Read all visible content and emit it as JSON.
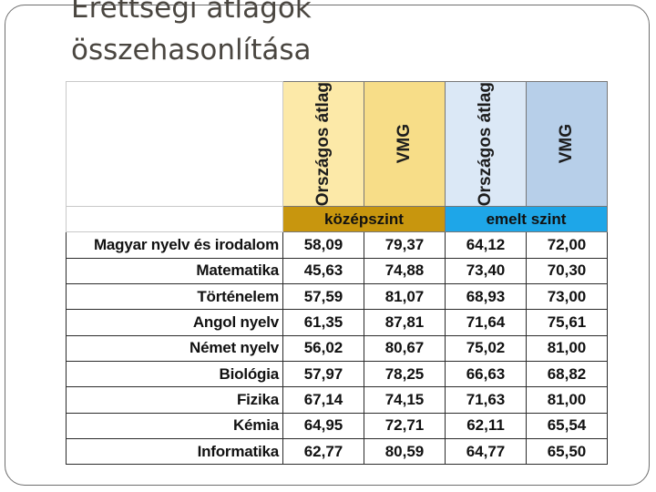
{
  "slide": {
    "title_line1": "Érettségi átlagok",
    "title_line2": "összehasonlítása"
  },
  "table": {
    "column_headers": [
      "Országos átlag",
      "VMG",
      "Országos átlag",
      "VMG"
    ],
    "levels": [
      "középszint",
      "emelt szint"
    ],
    "rows": [
      {
        "subject": "Magyar nyelv és irodalom",
        "values": [
          "58,09",
          "79,37",
          "64,12",
          "72,00"
        ]
      },
      {
        "subject": "Matematika",
        "values": [
          "45,63",
          "74,88",
          "73,40",
          "70,30"
        ]
      },
      {
        "subject": "Történelem",
        "values": [
          "57,59",
          "81,07",
          "68,93",
          "73,00"
        ]
      },
      {
        "subject": "Angol nyelv",
        "values": [
          "61,35",
          "87,81",
          "71,64",
          "75,61"
        ]
      },
      {
        "subject": "Német nyelv",
        "values": [
          "56,02",
          "80,67",
          "75,02",
          "81,00"
        ]
      },
      {
        "subject": "Biológia",
        "values": [
          "57,97",
          "78,25",
          "66,63",
          "68,82"
        ]
      },
      {
        "subject": "Fizika",
        "values": [
          "67,14",
          "74,15",
          "71,63",
          "81,00"
        ]
      },
      {
        "subject": "Kémia",
        "values": [
          "64,95",
          "72,71",
          "62,11",
          "65,54"
        ]
      },
      {
        "subject": "Informatika",
        "values": [
          "62,77",
          "80,59",
          "64,77",
          "65,50"
        ]
      }
    ],
    "colors": {
      "kozep_level": "#c8960e",
      "emelt_level": "#1ea6e8",
      "kozep_orszagos_header": "#fce9a8",
      "kozep_vmg_header": "#f7dd88",
      "emelt_orszagos_header": "#dbe8f6",
      "emelt_vmg_header": "#b7cfe9"
    }
  }
}
